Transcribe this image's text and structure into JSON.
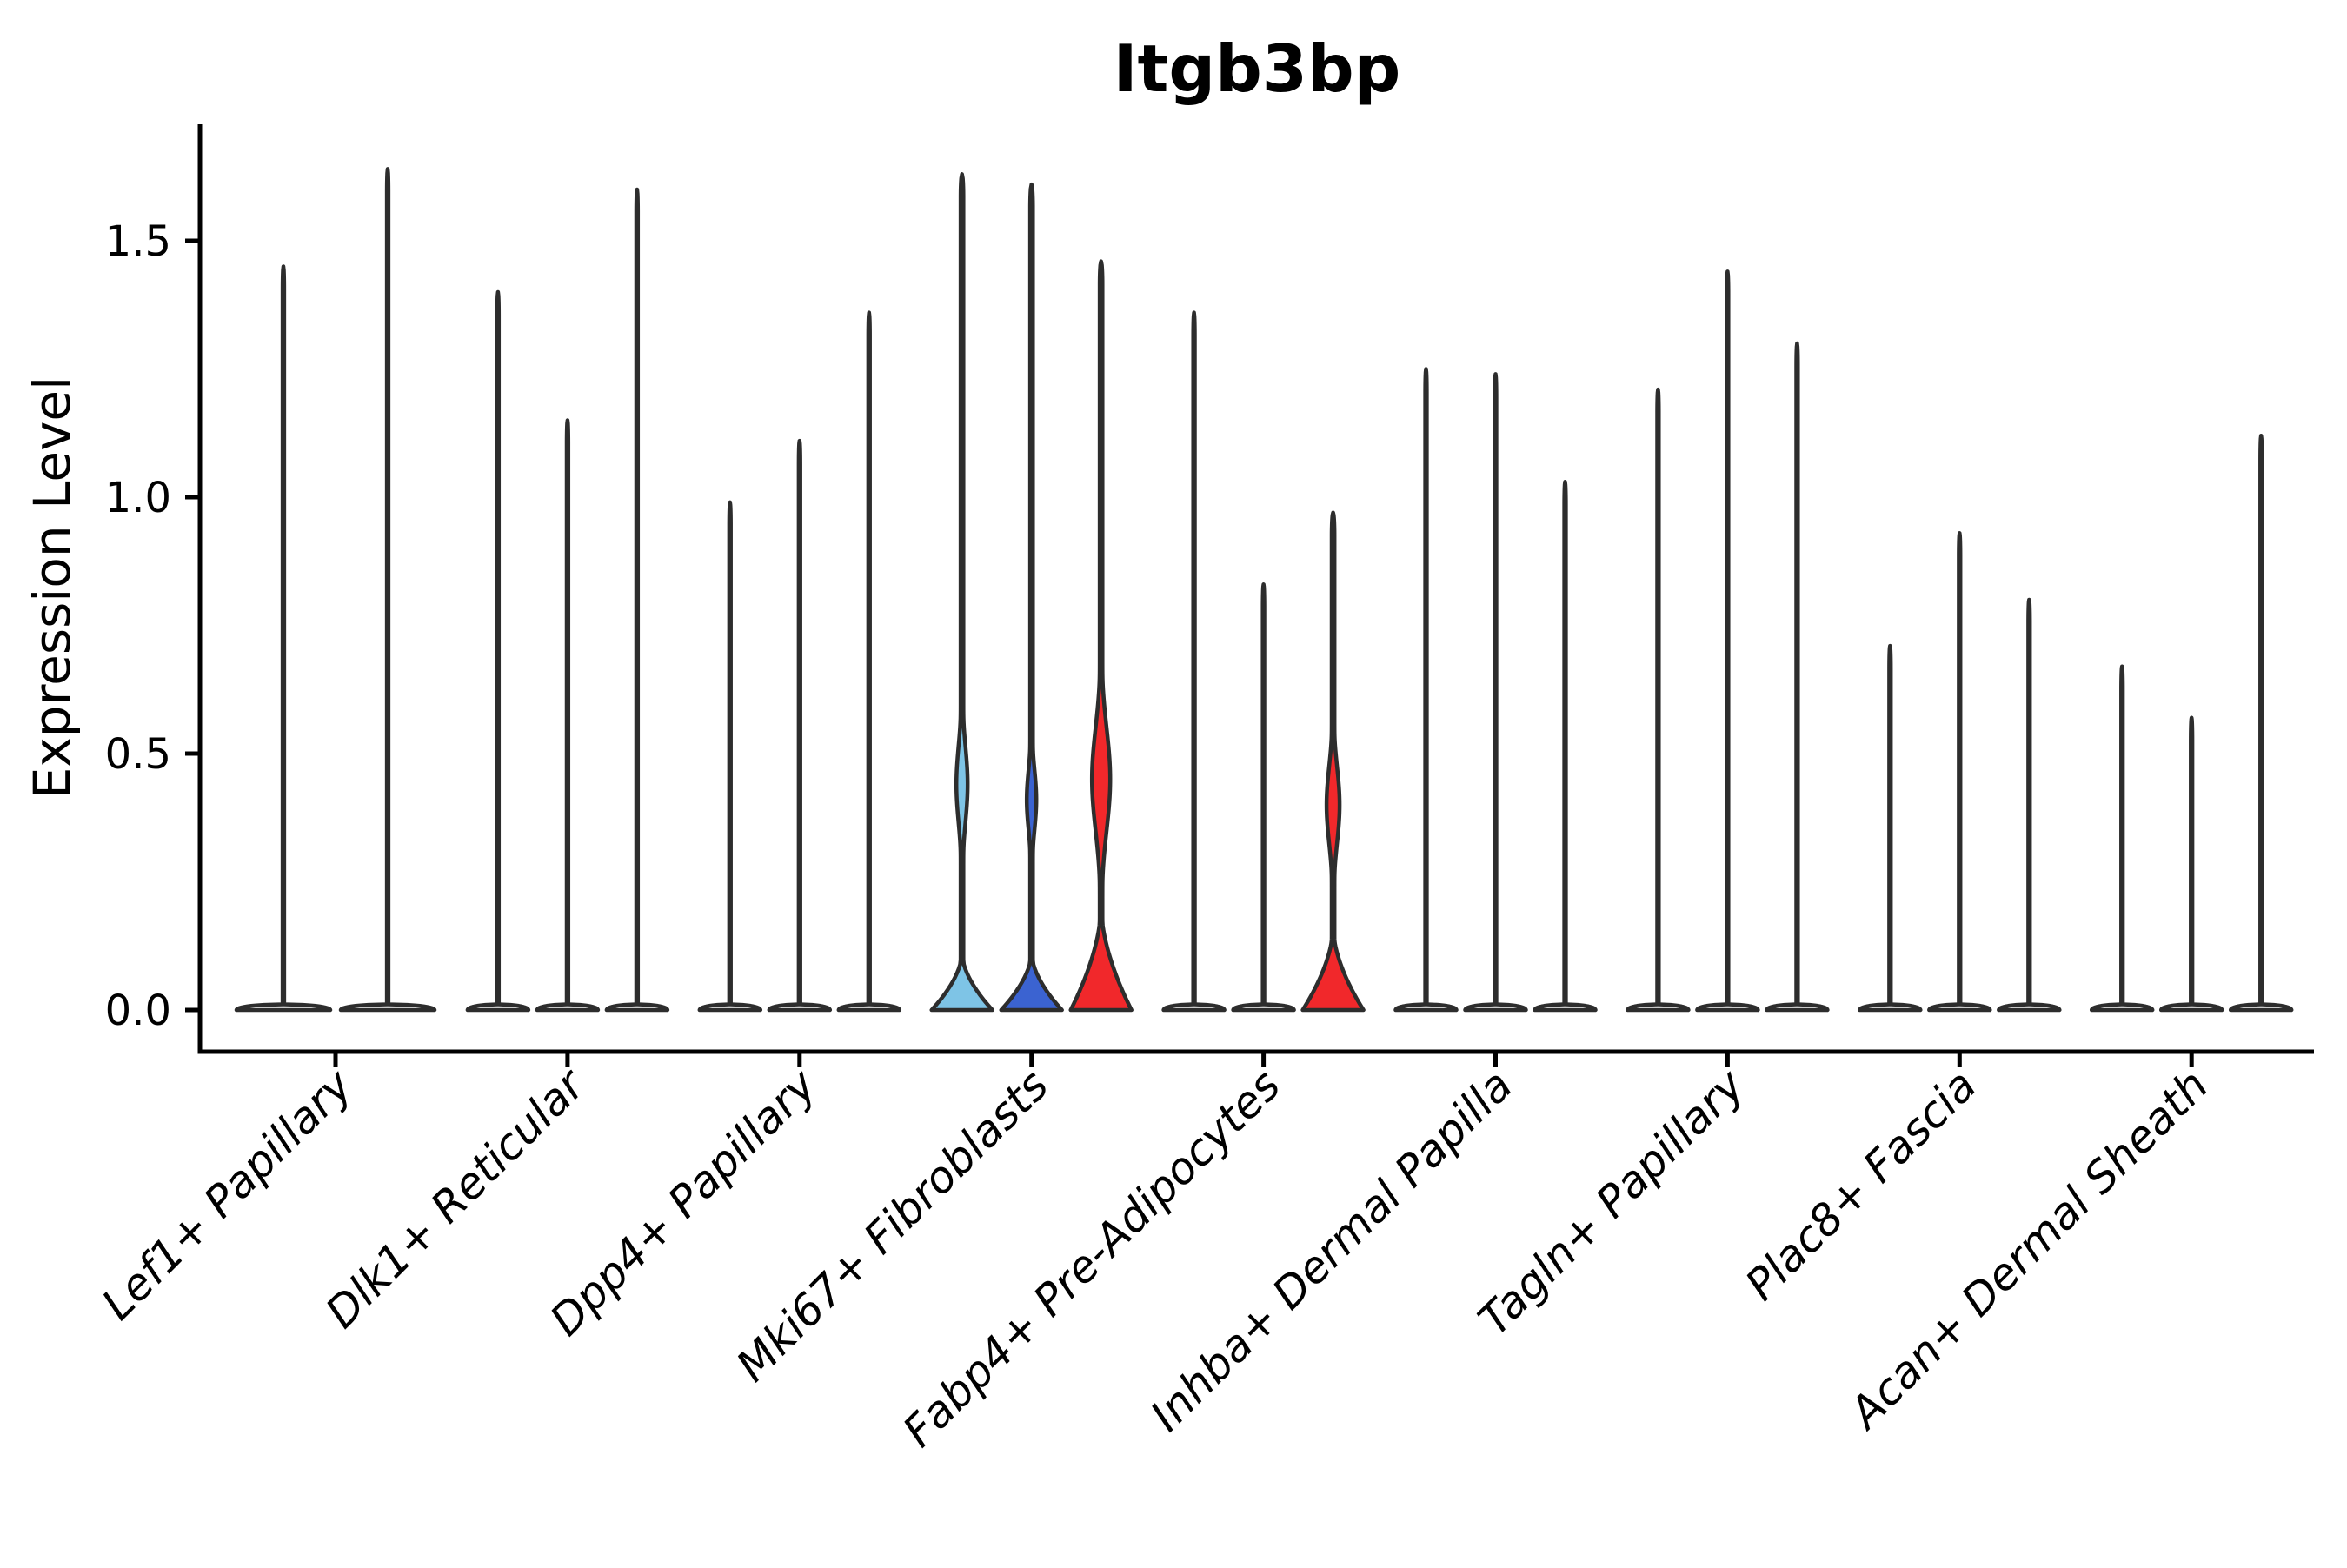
{
  "title": "Itgb3bp",
  "y_axis": {
    "label": "Expression Level",
    "ticks": [
      {
        "value": 0.0,
        "label": "0.0"
      },
      {
        "value": 0.5,
        "label": "0.5"
      },
      {
        "value": 1.0,
        "label": "1.0"
      },
      {
        "value": 1.5,
        "label": "1.5"
      }
    ]
  },
  "colors": {
    "background": "#ffffff",
    "axis": "#000000",
    "violin_outline": "#2d2d2d",
    "plain_fill": "#ffffff",
    "highlight_light_blue": "#7EC4E6",
    "highlight_blue": "#3B63D1",
    "highlight_red": "#F1282B"
  },
  "chart_data": {
    "type": "violin",
    "title": "Itgb3bp",
    "xlabel": "",
    "ylabel": "Expression Level",
    "ylim": [
      -0.08,
      1.73
    ],
    "yticks": [
      0.0,
      0.5,
      1.0,
      1.5
    ],
    "grid": false,
    "legend": false,
    "x_tick_rotation": 45,
    "categories": [
      "Lef1+ Papillary",
      "Dlk1+ Reticular",
      "Dpp4+ Papillary",
      "Mki67+ Fibroblasts",
      "Fabp4+ Pre-Adipocytes",
      "Inhba+ Dermal Papilla",
      "Tagln+ Papillary",
      "Plac8+ Fascia",
      "Acan+ Dermal Sheath"
    ],
    "groups": [
      {
        "label": "Lef1+ Papillary",
        "violins": [
          {
            "max": 1.45,
            "fill": "#FFFFFF"
          },
          {
            "max": 1.64,
            "fill": "#FFFFFF"
          }
        ]
      },
      {
        "label": "Dlk1+ Reticular",
        "violins": [
          {
            "max": 1.4,
            "fill": "#FFFFFF"
          },
          {
            "max": 1.15,
            "fill": "#FFFFFF"
          },
          {
            "max": 1.6,
            "fill": "#FFFFFF"
          }
        ]
      },
      {
        "label": "Dpp4+ Papillary",
        "violins": [
          {
            "max": 0.99,
            "fill": "#FFFFFF"
          },
          {
            "max": 1.11,
            "fill": "#FFFFFF"
          },
          {
            "max": 1.36,
            "fill": "#FFFFFF"
          }
        ]
      },
      {
        "label": "Mki67+ Fibroblasts",
        "violins": [
          {
            "max": 1.63,
            "fill": "#7EC4E6",
            "base_top": 0.11,
            "bulge": {
              "center": 0.44,
              "sigma": 0.075,
              "halfwidth": 6.5
            }
          },
          {
            "max": 1.61,
            "fill": "#3B63D1",
            "base_top": 0.11,
            "bulge": {
              "center": 0.41,
              "sigma": 0.06,
              "halfwidth": 5.5
            }
          },
          {
            "max": 1.46,
            "fill": "#F1282B",
            "base_top": 0.2,
            "bulge": {
              "center": 0.45,
              "sigma": 0.1,
              "halfwidth": 10.5
            }
          }
        ]
      },
      {
        "label": "Fabp4+ Pre-Adipocytes",
        "violins": [
          {
            "max": 1.36,
            "fill": "#FFFFFF"
          },
          {
            "max": 0.83,
            "fill": "#FFFFFF"
          },
          {
            "max": 0.97,
            "fill": "#F1282B",
            "base_top": 0.16,
            "bulge": {
              "center": 0.4,
              "sigma": 0.075,
              "halfwidth": 7.5
            }
          }
        ]
      },
      {
        "label": "Inhba+ Dermal Papilla",
        "violins": [
          {
            "max": 1.25,
            "fill": "#FFFFFF"
          },
          {
            "max": 1.24,
            "fill": "#FFFFFF"
          },
          {
            "max": 1.03,
            "fill": "#FFFFFF"
          }
        ]
      },
      {
        "label": "Tagln+ Papillary",
        "violins": [
          {
            "max": 1.21,
            "fill": "#FFFFFF"
          },
          {
            "max": 1.44,
            "fill": "#FFFFFF"
          },
          {
            "max": 1.3,
            "fill": "#FFFFFF"
          }
        ]
      },
      {
        "label": "Plac8+ Fascia",
        "violins": [
          {
            "max": 0.71,
            "fill": "#FFFFFF"
          },
          {
            "max": 0.93,
            "fill": "#FFFFFF"
          },
          {
            "max": 0.8,
            "fill": "#FFFFFF"
          }
        ]
      },
      {
        "label": "Acan+ Dermal Sheath",
        "violins": [
          {
            "max": 0.67,
            "fill": "#FFFFFF"
          },
          {
            "max": 0.57,
            "fill": "#FFFFFF"
          },
          {
            "max": 1.12,
            "fill": "#FFFFFF"
          }
        ]
      }
    ]
  }
}
